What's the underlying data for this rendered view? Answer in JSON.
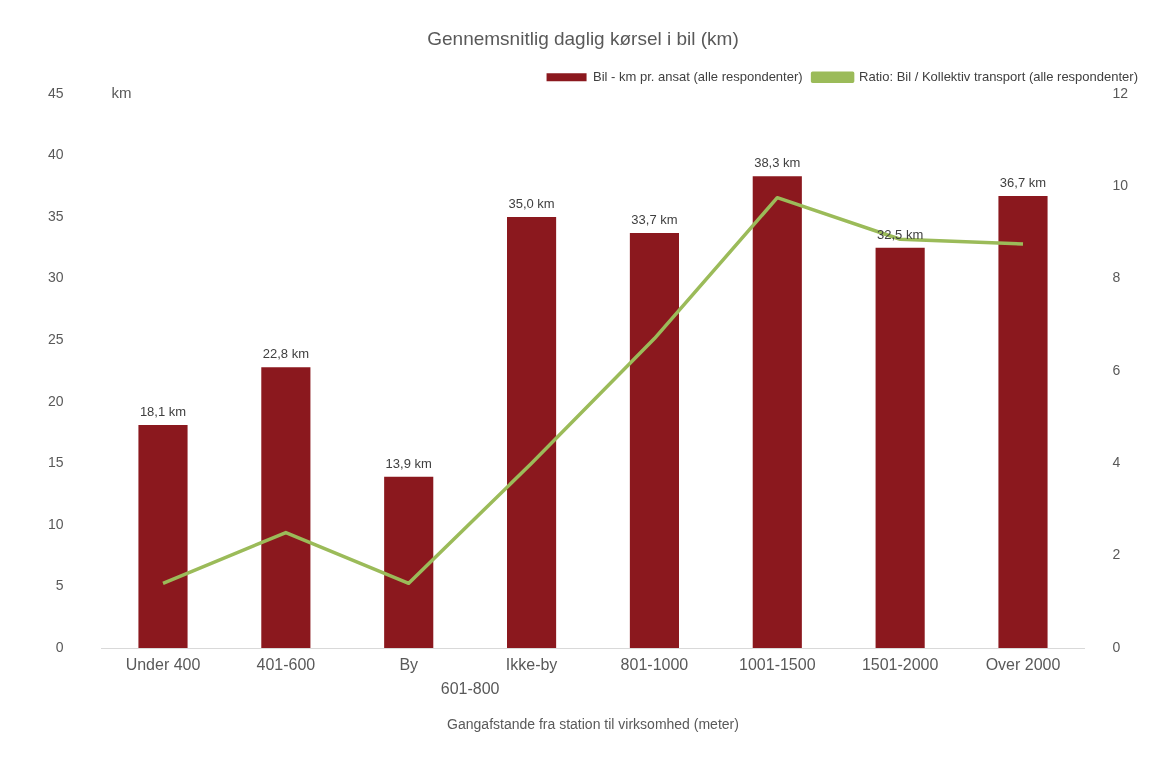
{
  "chart_data": {
    "type": "bar",
    "title": "Gennemsnitlig daglig kørsel i bil (km)",
    "xlabel": "Gangafstande fra station til virksomhed (meter)",
    "ylabel": "km",
    "categories": [
      "Under 400",
      "401-600",
      "By",
      "Ikke-by",
      "801-1000",
      "1001-1500",
      "1501-2000",
      "Over 2000"
    ],
    "series": [
      {
        "name": "Bil - km pr. ansat (alle respondenter)",
        "color": "#8b181e",
        "values": [
          18.1,
          22.8,
          13.9,
          35.0,
          33.7,
          38.3,
          32.5,
          36.7
        ],
        "value_labels": [
          "18,1 km",
          "22,8 km",
          "13,9 km",
          "35,0 km",
          "33,7 km",
          "38,3 km",
          "32,5 km",
          "36,7 km"
        ]
      },
      {
        "name": "Ratio: Bil / Kollektiv transport (alle respondenter)",
        "type": "line",
        "axis": "y2",
        "color": "#9bbb59",
        "values": [
          1.4,
          2.5,
          1.4,
          4.0,
          6.7,
          9.75,
          8.85,
          8.75
        ]
      }
    ],
    "annotations": [
      "601-800"
    ],
    "ylim": [
      0,
      45
    ],
    "yticks": [
      0,
      5,
      10,
      15,
      20,
      25,
      30,
      35,
      40,
      45
    ],
    "y2lim": [
      0,
      12
    ],
    "y2ticks": [
      0,
      2,
      4,
      6,
      8,
      10,
      12
    ],
    "grid": false,
    "legend": "top right",
    "marker": "none",
    "line_style": "solid"
  }
}
